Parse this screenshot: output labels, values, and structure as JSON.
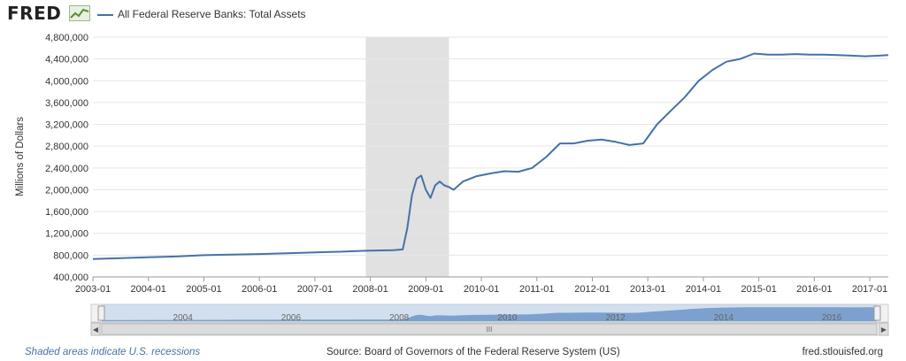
{
  "header": {
    "logo_text": "FRED",
    "logo_icon": "line-graph-icon",
    "legend_label": "All Federal Reserve Banks: Total Assets"
  },
  "chart_data": {
    "type": "line",
    "title": "",
    "xlabel": "",
    "ylabel": "Millions of Dollars",
    "ylim": [
      400000,
      4800000
    ],
    "y_ticks": [
      "400,000",
      "800,000",
      "1,200,000",
      "1,600,000",
      "2,000,000",
      "2,400,000",
      "2,800,000",
      "3,200,000",
      "3,600,000",
      "4,000,000",
      "4,400,000",
      "4,800,000"
    ],
    "y_tick_values": [
      400000,
      800000,
      1200000,
      1600000,
      2000000,
      2400000,
      2800000,
      3200000,
      3600000,
      4000000,
      4400000,
      4800000
    ],
    "x_ticks": [
      "2003-01",
      "2004-01",
      "2005-01",
      "2006-01",
      "2007-01",
      "2008-01",
      "2009-01",
      "2010-01",
      "2011-01",
      "2012-01",
      "2013-01",
      "2014-01",
      "2015-01",
      "2016-01",
      "2017-01"
    ],
    "xlim": [
      "2003-01",
      "2017-05"
    ],
    "grid": true,
    "line_color": "#4572a7",
    "recession_shading": [
      [
        "2007-12",
        "2009-06"
      ]
    ],
    "series": [
      {
        "name": "All Federal Reserve Banks: Total Assets",
        "x": [
          "2003-01",
          "2003-07",
          "2004-01",
          "2004-07",
          "2005-01",
          "2005-07",
          "2006-01",
          "2006-07",
          "2007-01",
          "2007-07",
          "2007-12",
          "2008-06",
          "2008-08",
          "2008-09",
          "2008-10",
          "2008-11",
          "2008-12",
          "2009-01",
          "2009-02",
          "2009-03",
          "2009-04",
          "2009-05",
          "2009-06",
          "2009-07",
          "2009-09",
          "2009-12",
          "2010-03",
          "2010-06",
          "2010-09",
          "2010-12",
          "2011-03",
          "2011-06",
          "2011-09",
          "2011-12",
          "2012-03",
          "2012-06",
          "2012-09",
          "2012-12",
          "2013-03",
          "2013-06",
          "2013-09",
          "2013-12",
          "2014-03",
          "2014-06",
          "2014-09",
          "2014-12",
          "2015-03",
          "2015-06",
          "2015-09",
          "2015-12",
          "2016-03",
          "2016-06",
          "2016-09",
          "2016-12",
          "2017-03",
          "2017-05"
        ],
        "values": [
          730000,
          745000,
          760000,
          775000,
          800000,
          810000,
          820000,
          835000,
          850000,
          865000,
          880000,
          890000,
          905000,
          1300000,
          1900000,
          2200000,
          2260000,
          2000000,
          1850000,
          2080000,
          2150000,
          2080000,
          2050000,
          2000000,
          2150000,
          2250000,
          2300000,
          2340000,
          2330000,
          2400000,
          2600000,
          2850000,
          2850000,
          2900000,
          2920000,
          2880000,
          2820000,
          2850000,
          3200000,
          3450000,
          3700000,
          4000000,
          4200000,
          4350000,
          4400000,
          4500000,
          4480000,
          4480000,
          4490000,
          4480000,
          4480000,
          4470000,
          4460000,
          4450000,
          4460000,
          4470000
        ]
      }
    ]
  },
  "navigator": {
    "labels": [
      "2004",
      "2006",
      "2008",
      "2010",
      "2012",
      "2014",
      "2016"
    ],
    "handle_label": "III"
  },
  "footer": {
    "recession_note": "Shaded areas indicate U.S. recessions",
    "source": "Source: Board of Governors of the Federal Reserve System (US)",
    "site": "fred.stlouisfed.org"
  }
}
